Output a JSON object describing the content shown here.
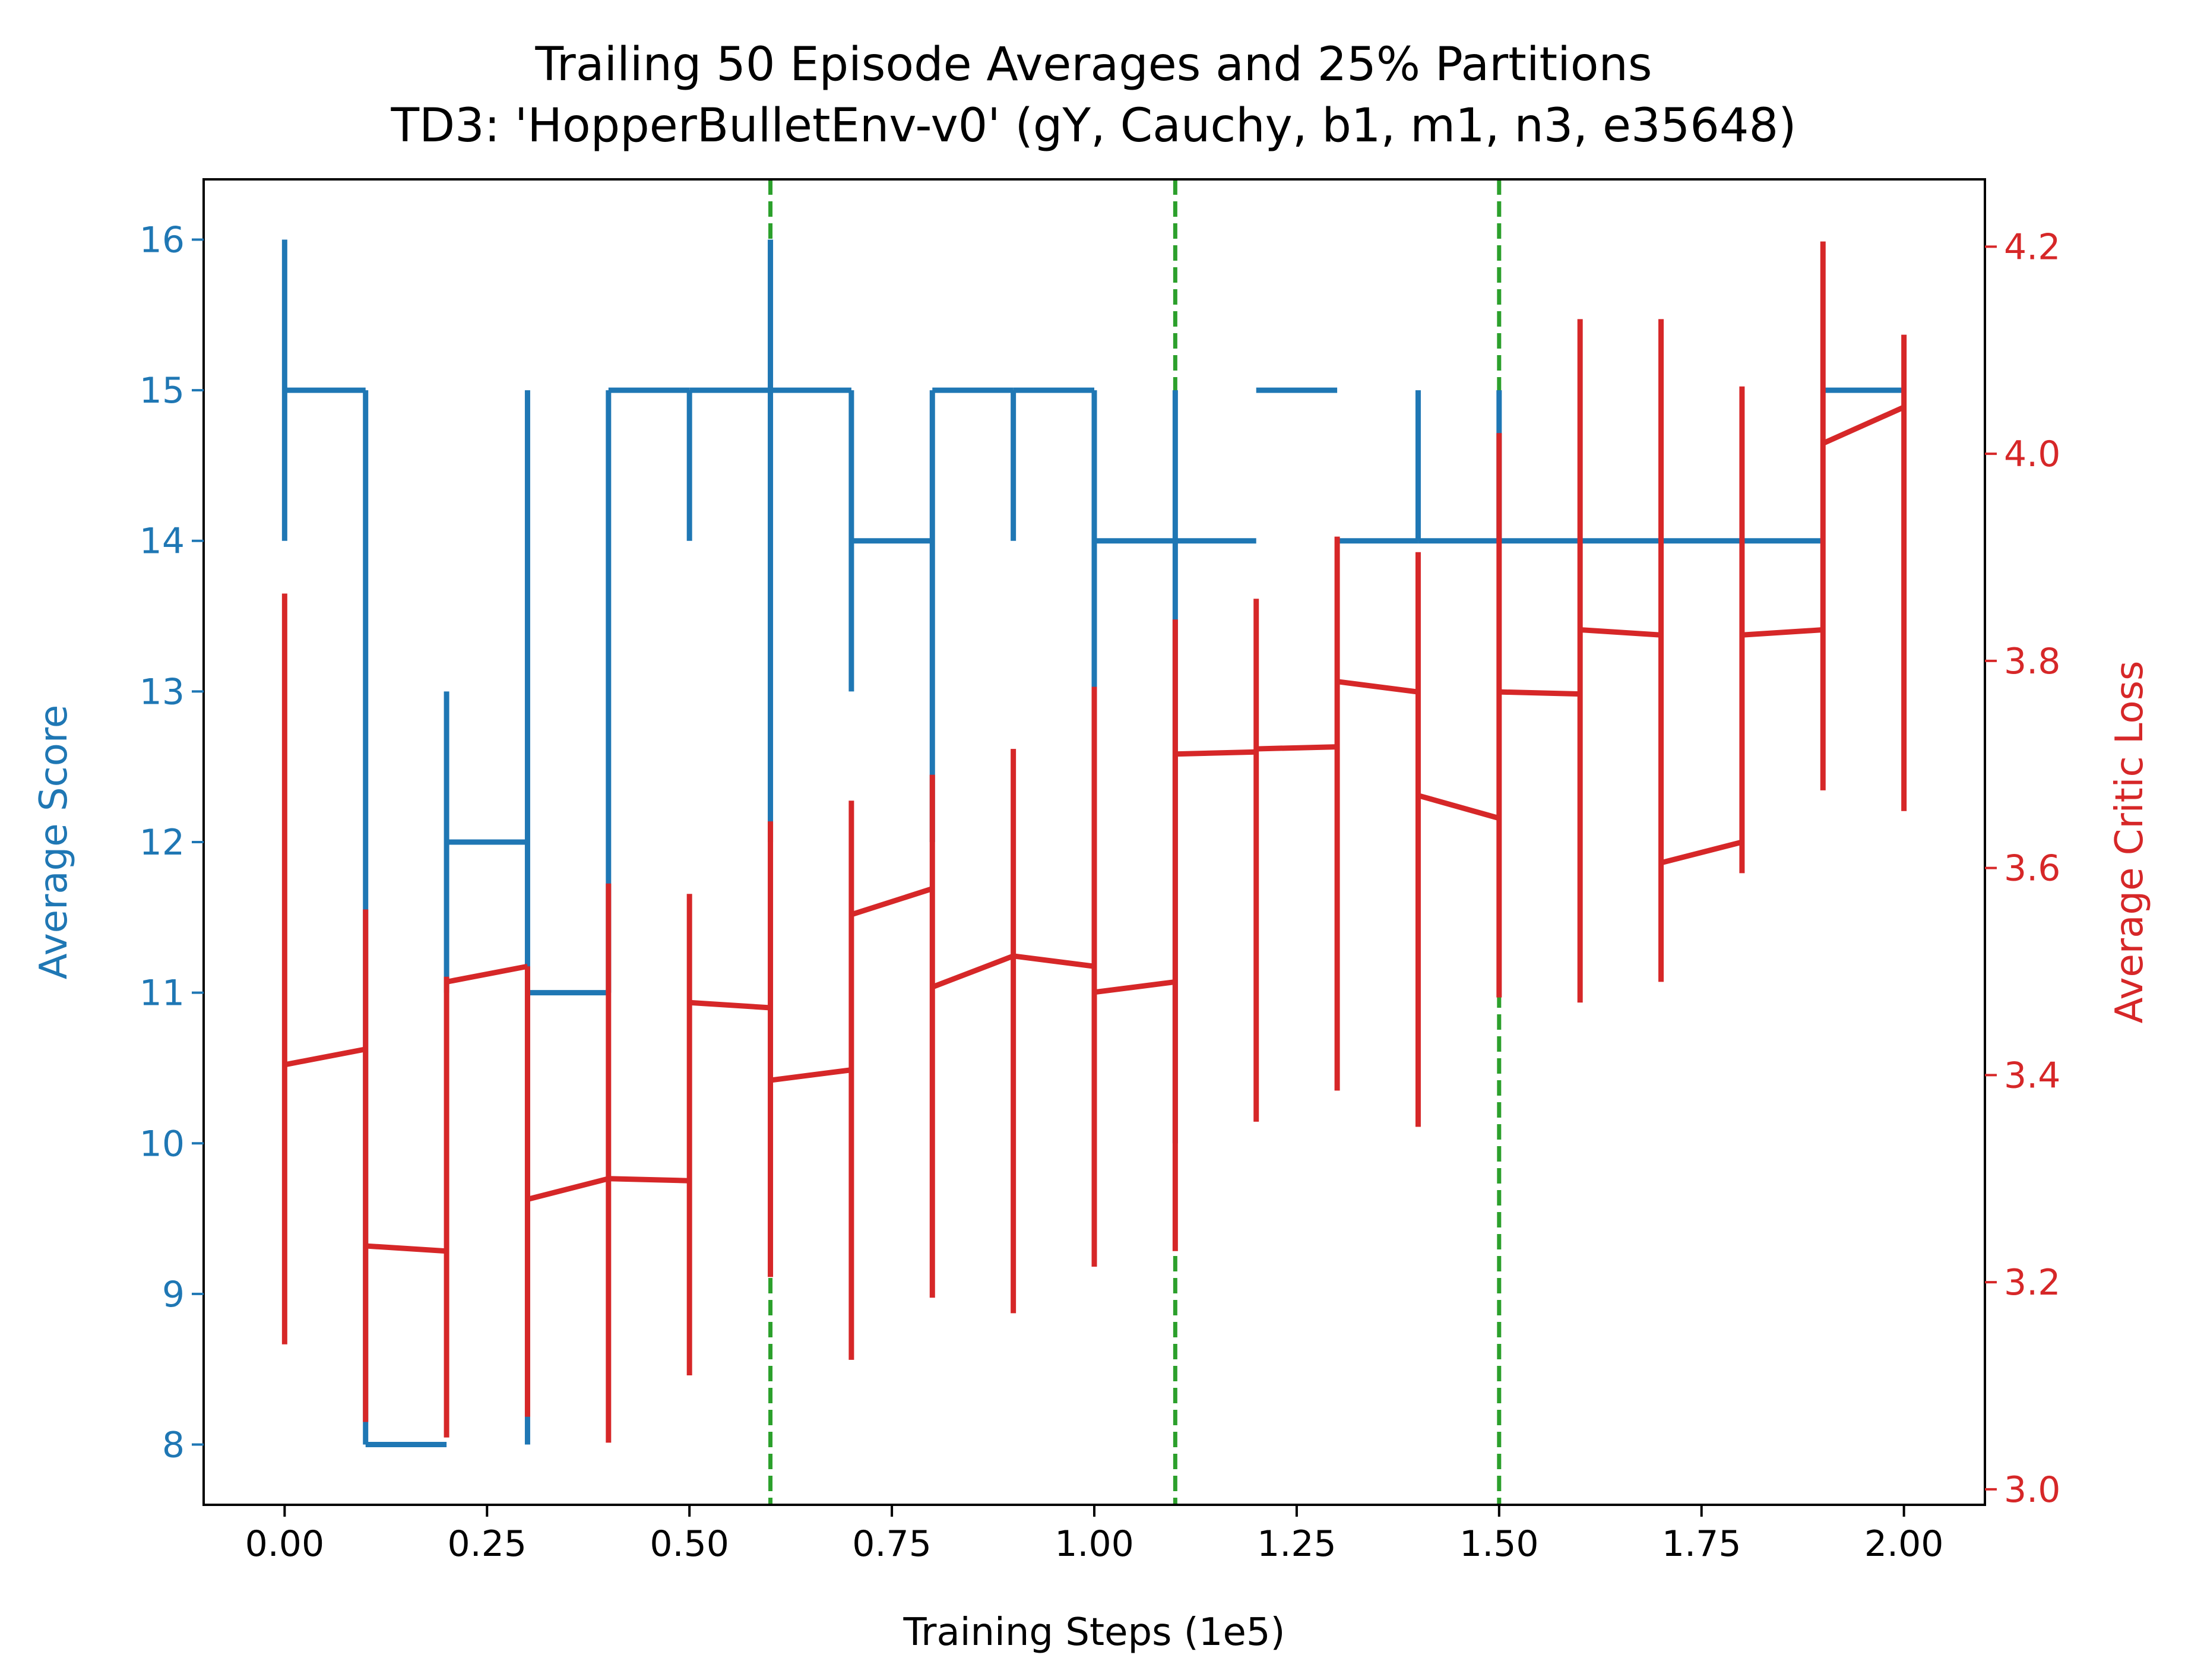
{
  "chart_data": {
    "type": "line",
    "title": "Trailing 50 Episode Averages and 25% Partitions",
    "subtitle": "TD3: 'HopperBulletEnv-v0' (gY, Cauchy, b1, m1, n3, e35648)",
    "xlabel": "Training Steps (1e5)",
    "ylabel_left": "Average Score",
    "ylabel_right": "Average Critic Loss",
    "xlim": [
      -0.1,
      2.1
    ],
    "ylim_left": [
      7.6,
      16.4
    ],
    "ylim_right": [
      2.985,
      4.265
    ],
    "x_ticks": [
      "0.00",
      "0.25",
      "0.50",
      "0.75",
      "1.00",
      "1.25",
      "1.50",
      "1.75",
      "2.00"
    ],
    "y_ticks_left": [
      "8",
      "9",
      "10",
      "11",
      "12",
      "13",
      "14",
      "15",
      "16"
    ],
    "y_ticks_right": [
      "3.0",
      "3.2",
      "3.4",
      "3.6",
      "3.8",
      "4.0",
      "4.2"
    ],
    "colors": {
      "score": "#1f77b4",
      "critic": "#d62728",
      "partition": "#2ca02c"
    },
    "partition_x": [
      0.6,
      1.1,
      1.5
    ],
    "x": [
      0.0,
      0.1,
      0.2,
      0.3,
      0.4,
      0.5,
      0.6,
      0.7,
      0.8,
      0.9,
      1.0,
      1.1,
      1.2,
      1.3,
      1.4,
      1.5,
      1.6,
      1.7,
      1.8,
      1.9,
      2.0
    ],
    "series": [
      {
        "axis": "left",
        "start": [
          15,
          8,
          12,
          11,
          15,
          15,
          15,
          14,
          15,
          15,
          14,
          14,
          15,
          14,
          14,
          14,
          14,
          14,
          14,
          15,
          null
        ],
        "end": [
          15,
          8,
          12,
          11,
          15,
          15,
          15,
          14,
          15,
          15,
          14,
          14,
          15,
          14,
          14,
          14,
          14,
          14,
          14,
          15,
          null
        ],
        "low": [
          14,
          8,
          11,
          8,
          11,
          14,
          12,
          13,
          12,
          14,
          13,
          10,
          15,
          14,
          14,
          14,
          14,
          14,
          14,
          15,
          15
        ],
        "high": [
          16,
          15,
          13,
          15,
          15,
          15,
          16,
          15,
          15,
          15,
          15,
          15,
          15,
          14,
          15,
          15,
          14,
          14,
          14,
          15,
          15
        ]
      },
      {
        "axis": "right",
        "start": [
          3.41,
          3.235,
          3.49,
          3.28,
          3.3,
          3.47,
          3.395,
          3.555,
          3.485,
          3.515,
          3.48,
          3.71,
          3.715,
          3.78,
          3.67,
          3.77,
          3.83,
          3.605,
          3.825,
          4.01,
          null
        ],
        "end": [
          3.425,
          3.23,
          3.505,
          3.3,
          3.298,
          3.465,
          3.405,
          3.58,
          3.515,
          3.505,
          3.49,
          3.712,
          3.717,
          3.77,
          3.648,
          3.768,
          3.825,
          3.625,
          3.83,
          4.045,
          null
        ],
        "low": [
          3.14,
          3.065,
          3.05,
          3.07,
          3.045,
          3.11,
          3.205,
          3.125,
          3.185,
          3.17,
          3.215,
          3.23,
          3.355,
          3.385,
          3.35,
          3.475,
          3.47,
          3.49,
          3.595,
          3.675,
          3.655
        ],
        "high": [
          3.865,
          3.56,
          3.495,
          3.505,
          3.585,
          3.575,
          3.645,
          3.665,
          3.69,
          3.715,
          3.775,
          3.84,
          3.86,
          3.92,
          3.905,
          4.02,
          4.13,
          4.13,
          4.065,
          4.205,
          4.115
        ]
      }
    ]
  }
}
